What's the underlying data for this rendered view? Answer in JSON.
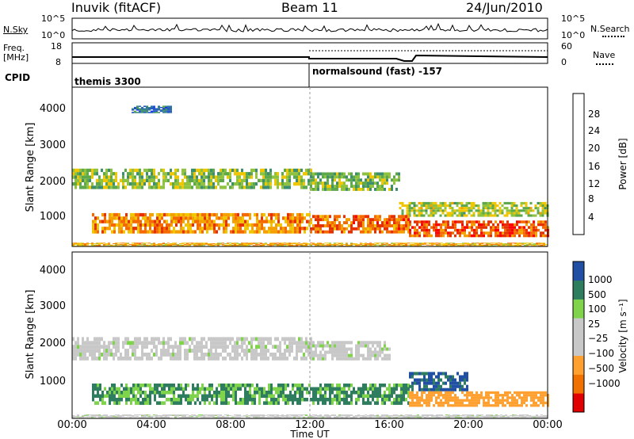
{
  "header": {
    "station": "Inuvik (fitACF)",
    "beam": "Beam 11",
    "date": "24/Jun/2010"
  },
  "sky_panel": {
    "left_label": "N.Sky",
    "left_ticks": [
      "10^5",
      "10^0"
    ],
    "right_label": "N.Search",
    "right_ticks": [
      "10^5",
      "10^0"
    ]
  },
  "freq_panel": {
    "left_label_1": "Freq.",
    "left_label_2": "[MHz]",
    "left_ticks": [
      "18",
      "8"
    ],
    "right_label": "Nave",
    "right_ticks": [
      "60",
      "0"
    ]
  },
  "cpid_panel": {
    "label": "CPID",
    "mode_1": "themis 3300",
    "mode_2": "normalsound (fast) -157"
  },
  "colors": {
    "power": [
      "#1528ff",
      "#2150d0",
      "#2f6fa8",
      "#3d8e6d",
      "#5ea84c",
      "#8fc33f",
      "#f0c600",
      "#f4a000",
      "#f46a00",
      "#e63000",
      "#ff0000"
    ],
    "velocity": [
      "#e00000",
      "#f07000",
      "#ffa030",
      "#c8c8c8",
      "#c8c8c8",
      "#7fd44b",
      "#2e7d5e",
      "#214fa3"
    ]
  },
  "chart_data": [
    {
      "type": "heatmap",
      "title": "Power",
      "ylabel": "Slant Range [km]",
      "yticks": [
        "1000",
        "2000",
        "3000",
        "4000"
      ],
      "ylim": [
        200,
        4500
      ],
      "xticks": [
        "00:00",
        "04:00",
        "08:00",
        "12:00",
        "16:00",
        "20:00",
        "00:00"
      ],
      "xlim_hours": [
        0,
        24
      ],
      "colorbar_label": "Power [dB]",
      "colorbar_ticks": [
        "4",
        "8",
        "12",
        "16",
        "20",
        "24",
        "28"
      ],
      "colorbar_range": [
        0,
        30
      ],
      "bands": [
        {
          "t0": 0,
          "t1": 12,
          "r0": 1750,
          "r1": 2300,
          "db": 14
        },
        {
          "t0": 12,
          "t1": 16.5,
          "r0": 1700,
          "r1": 2200,
          "db": 13
        },
        {
          "t0": 16.5,
          "t1": 24,
          "r0": 1000,
          "r1": 1400,
          "db": 15
        },
        {
          "t0": 1,
          "t1": 12,
          "r0": 550,
          "r1": 1100,
          "db": 22
        },
        {
          "t0": 12,
          "t1": 17,
          "r0": 550,
          "r1": 1050,
          "db": 24
        },
        {
          "t0": 17,
          "t1": 24,
          "r0": 450,
          "r1": 900,
          "db": 26
        },
        {
          "t0": 3,
          "t1": 5,
          "r0": 3800,
          "r1": 4000,
          "db": 6
        },
        {
          "t0": 0,
          "t1": 24,
          "r0": 200,
          "r1": 300,
          "db": 20
        }
      ]
    },
    {
      "type": "heatmap",
      "title": "Velocity",
      "ylabel": "Slant Range [km]",
      "yticks": [
        "1000",
        "2000",
        "3000",
        "4000"
      ],
      "ylim": [
        200,
        4500
      ],
      "xticks": [
        "00:00",
        "04:00",
        "08:00",
        "12:00",
        "16:00",
        "20:00",
        "00:00"
      ],
      "xlim_hours": [
        0,
        24
      ],
      "xlabel": "Time UT",
      "colorbar_label": "Velocity [m s⁻¹]",
      "colorbar_ticks": [
        "1000",
        "500",
        "100",
        "25",
        "−25",
        "−100",
        "−500",
        "−1000"
      ],
      "bands": [
        {
          "t0": 0,
          "t1": 12,
          "r0": 1700,
          "r1": 2300,
          "v": 0
        },
        {
          "t0": 12,
          "t1": 16,
          "r0": 1700,
          "r1": 2200,
          "v": 0
        },
        {
          "t0": 1,
          "t1": 12,
          "r0": 550,
          "r1": 1100,
          "v": 120
        },
        {
          "t0": 12,
          "t1": 17,
          "r0": 550,
          "r1": 1100,
          "v": 150
        },
        {
          "t0": 17,
          "t1": 20,
          "r0": 900,
          "r1": 1400,
          "v": 600
        },
        {
          "t0": 17,
          "t1": 24,
          "r0": 500,
          "r1": 900,
          "v": -300
        },
        {
          "t0": 0,
          "t1": 24,
          "r0": 200,
          "r1": 300,
          "v": 0
        }
      ]
    }
  ]
}
